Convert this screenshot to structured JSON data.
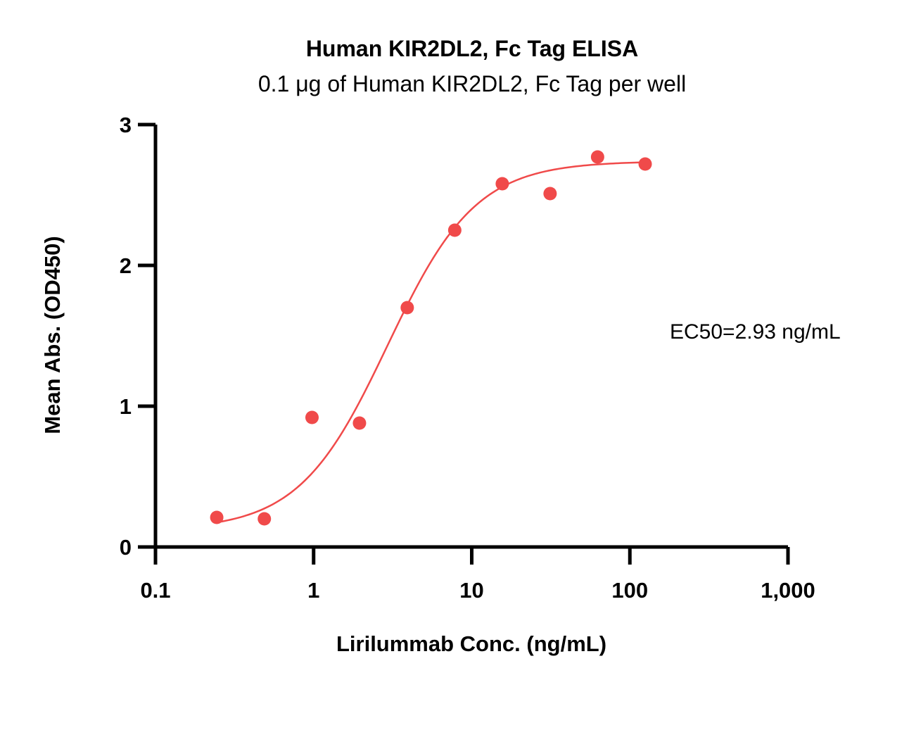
{
  "chart_data": {
    "type": "scatter",
    "title": "Human KIR2DL2, Fc Tag ELISA",
    "subtitle": "0.1 μg of Human KIR2DL2, Fc Tag per well",
    "xlabel": "Lirilummab Conc. (ng/mL)",
    "ylabel": "Mean Abs. (OD450)",
    "xscale": "log",
    "xlim": [
      0.1,
      1000
    ],
    "ylim": [
      0,
      3
    ],
    "x_ticks": [
      0.1,
      1,
      10,
      100,
      1000
    ],
    "x_tick_labels": [
      "0.1",
      "1",
      "10",
      "100",
      "1,000"
    ],
    "y_ticks": [
      0,
      1,
      2,
      3
    ],
    "y_tick_labels": [
      "0",
      "1",
      "2",
      "3"
    ],
    "grid": false,
    "color": "#f04a4a",
    "points": {
      "x": [
        0.244,
        0.488,
        0.977,
        1.95,
        3.91,
        7.81,
        15.6,
        31.3,
        62.5,
        125
      ],
      "y": [
        0.21,
        0.2,
        0.92,
        0.88,
        1.7,
        2.25,
        2.58,
        2.51,
        2.77,
        2.72
      ]
    },
    "fit_curve": {
      "model": "4PL",
      "bottom": 0.12,
      "top": 2.74,
      "ec50": 2.93,
      "hill": 1.55
    },
    "annotation": "EC50=2.93 ng/mL"
  }
}
